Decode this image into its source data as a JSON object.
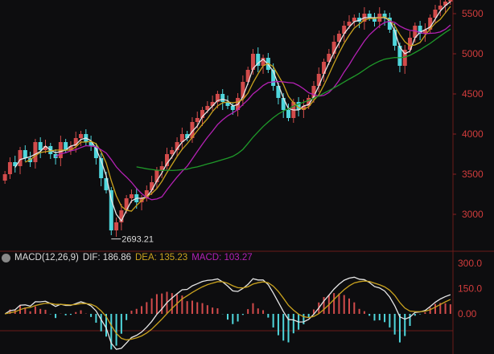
{
  "chart_data": [
    {
      "type": "candlestick",
      "y_axis_position": "right",
      "y_ticks": [
        3000,
        3500,
        4000,
        4500,
        5000,
        5500
      ],
      "ylim": [
        2500,
        5700
      ],
      "closes": [
        3500,
        3650,
        3600,
        3800,
        3700,
        3650,
        3900,
        3800,
        3850,
        3750,
        3700,
        3900,
        3800,
        3850,
        3950,
        4000,
        3900,
        3850,
        3700,
        3450,
        3300,
        2800,
        2900,
        3050,
        3200,
        3250,
        3150,
        3200,
        3300,
        3400,
        3550,
        3600,
        3750,
        3800,
        3900,
        4000,
        3950,
        4150,
        4200,
        4300,
        4350,
        4400,
        4500,
        4400,
        4350,
        4300,
        4450,
        4650,
        4800,
        5000,
        4850,
        4950,
        4800,
        4600,
        4450,
        4300,
        4200,
        4400,
        4300,
        4350,
        4450,
        4600,
        4750,
        4900,
        5000,
        5150,
        5250,
        5350,
        5400,
        5450,
        5400,
        5500,
        5450,
        5400,
        5500,
        5450,
        5300,
        5100,
        4850,
        5050,
        5200,
        5350,
        5250,
        5300,
        5450,
        5550,
        5600,
        5650,
        5700
      ],
      "moving_average_colors": [
        "#e6e6e6",
        "#c9a21e",
        "#b421b4",
        "#1f9a2a"
      ],
      "up_color": "#d24b4b",
      "down_color": "#4fd6dc",
      "low_annotation": "2693.21"
    },
    {
      "type": "macd",
      "title": "MACD(12,26,9)",
      "dif_label": "DIF: 186.86",
      "dea_label": "DEA: 135.23",
      "macd_label": "MACD: 103.27",
      "y_ticks": [
        "300.0",
        "150.0",
        "0.00"
      ],
      "colors": {
        "dif": "#e6e6e6",
        "dea": "#c9a21e",
        "macd": "#b421b4"
      }
    }
  ]
}
